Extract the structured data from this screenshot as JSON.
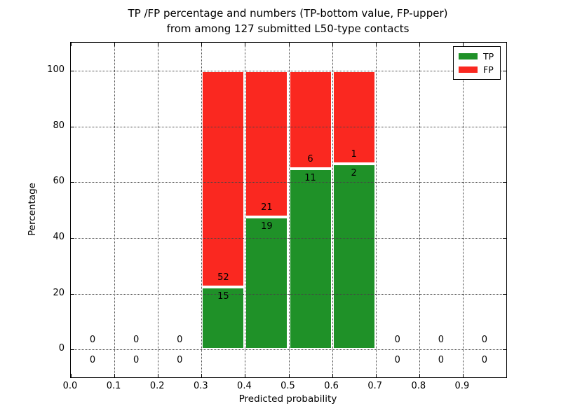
{
  "figure": {
    "title_line1": "TP /FP percentage and numbers (TP-bottom value, FP-upper)",
    "title_line2": "from among 127 submitted L50-type contacts"
  },
  "chart_data": {
    "type": "bar",
    "stacked": true,
    "title": "TP /FP percentage and numbers (TP-bottom value, FP-upper) from among 127 submitted L50-type contacts",
    "xlabel": "Predicted probability",
    "ylabel": "Percentage",
    "xlim": [
      0.0,
      1.0
    ],
    "ylim": [
      -10,
      110
    ],
    "x_tick_values": [
      0.0,
      0.1,
      0.2,
      0.3,
      0.4,
      0.5,
      0.6,
      0.7,
      0.8,
      0.9
    ],
    "x_tick_labels": [
      "0.0",
      "0.1",
      "0.2",
      "0.3",
      "0.4",
      "0.5",
      "0.6",
      "0.7",
      "0.8",
      "0.9"
    ],
    "y_tick_values": [
      0,
      20,
      40,
      60,
      80,
      100
    ],
    "y_tick_labels": [
      "0",
      "20",
      "40",
      "60",
      "80",
      "100"
    ],
    "grid": "dotted",
    "legend_position": "upper right",
    "legend": [
      {
        "name": "TP",
        "color": "#1f9128"
      },
      {
        "name": "FP",
        "color": "#fa2820"
      }
    ],
    "total_contacts": 127,
    "annotation_rule": "FP count above segment boundary, TP count below; empty bins show 0 above and 0 below the zero line",
    "bins": [
      {
        "x0": 0.0,
        "x1": 0.1,
        "tp": 0,
        "fp": 0
      },
      {
        "x0": 0.1,
        "x1": 0.2,
        "tp": 0,
        "fp": 0
      },
      {
        "x0": 0.2,
        "x1": 0.3,
        "tp": 0,
        "fp": 0
      },
      {
        "x0": 0.3,
        "x1": 0.4,
        "tp": 15,
        "fp": 52
      },
      {
        "x0": 0.4,
        "x1": 0.5,
        "tp": 19,
        "fp": 21
      },
      {
        "x0": 0.5,
        "x1": 0.6,
        "tp": 11,
        "fp": 6
      },
      {
        "x0": 0.6,
        "x1": 0.7,
        "tp": 2,
        "fp": 1
      },
      {
        "x0": 0.7,
        "x1": 0.8,
        "tp": 0,
        "fp": 0
      },
      {
        "x0": 0.8,
        "x1": 0.9,
        "tp": 0,
        "fp": 0
      },
      {
        "x0": 0.9,
        "x1": 1.0,
        "tp": 0,
        "fp": 0
      }
    ],
    "colors": {
      "tp": "#1f9128",
      "fp": "#fa2820",
      "bar_edge": "#ffffff",
      "grid": "#444444",
      "axis": "#000000",
      "background": "#ffffff",
      "text": "#000000"
    }
  }
}
